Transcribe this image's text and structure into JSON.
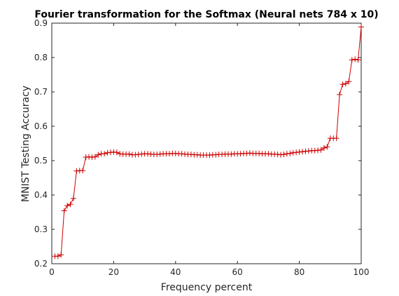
{
  "chart_data": {
    "type": "line",
    "title": "Fourier transformation for the Softmax (Neural nets 784 x 10)",
    "xlabel": "Frequency percent",
    "ylabel": "MNIST Testing Accuracy",
    "xlim": [
      0,
      100
    ],
    "ylim": [
      0.2,
      0.9
    ],
    "xticks": [
      "0",
      "20",
      "40",
      "60",
      "80",
      "100"
    ],
    "yticks": [
      "0.2",
      "0.3",
      "0.4",
      "0.5",
      "0.6",
      "0.7",
      "0.8",
      "0.9"
    ],
    "grid": false,
    "marker": "+",
    "line_color": "#cc0000",
    "series": [
      {
        "x": [
          1,
          2,
          3,
          4,
          5,
          6,
          7,
          8,
          9,
          10,
          11,
          12,
          13,
          14,
          15,
          16,
          17,
          18,
          19,
          20,
          21,
          22,
          23,
          24,
          25,
          26,
          27,
          28,
          29,
          30,
          31,
          32,
          33,
          34,
          35,
          36,
          37,
          38,
          39,
          40,
          41,
          42,
          43,
          44,
          45,
          46,
          47,
          48,
          49,
          50,
          51,
          52,
          53,
          54,
          55,
          56,
          57,
          58,
          59,
          60,
          61,
          62,
          63,
          64,
          65,
          66,
          67,
          68,
          69,
          70,
          71,
          72,
          73,
          74,
          75,
          76,
          77,
          78,
          79,
          80,
          81,
          82,
          83,
          84,
          85,
          86,
          87,
          88,
          89,
          90,
          91,
          92,
          93,
          94,
          95,
          96,
          97,
          98,
          99,
          100
        ],
        "values": [
          0.222,
          0.222,
          0.226,
          0.354,
          0.369,
          0.373,
          0.39,
          0.47,
          0.471,
          0.471,
          0.51,
          0.511,
          0.51,
          0.511,
          0.517,
          0.52,
          0.52,
          0.523,
          0.524,
          0.525,
          0.524,
          0.52,
          0.519,
          0.519,
          0.519,
          0.517,
          0.517,
          0.518,
          0.519,
          0.52,
          0.52,
          0.519,
          0.518,
          0.518,
          0.519,
          0.52,
          0.52,
          0.52,
          0.521,
          0.521,
          0.52,
          0.52,
          0.519,
          0.518,
          0.518,
          0.517,
          0.517,
          0.516,
          0.516,
          0.516,
          0.516,
          0.517,
          0.517,
          0.518,
          0.518,
          0.519,
          0.519,
          0.519,
          0.52,
          0.52,
          0.52,
          0.521,
          0.521,
          0.522,
          0.521,
          0.521,
          0.521,
          0.52,
          0.52,
          0.52,
          0.519,
          0.519,
          0.518,
          0.517,
          0.518,
          0.52,
          0.521,
          0.523,
          0.524,
          0.525,
          0.526,
          0.527,
          0.528,
          0.529,
          0.529,
          0.53,
          0.531,
          0.537,
          0.54,
          0.565,
          0.565,
          0.565,
          0.692,
          0.722,
          0.724,
          0.73,
          0.793,
          0.795,
          0.793,
          0.889
        ]
      }
    ]
  }
}
